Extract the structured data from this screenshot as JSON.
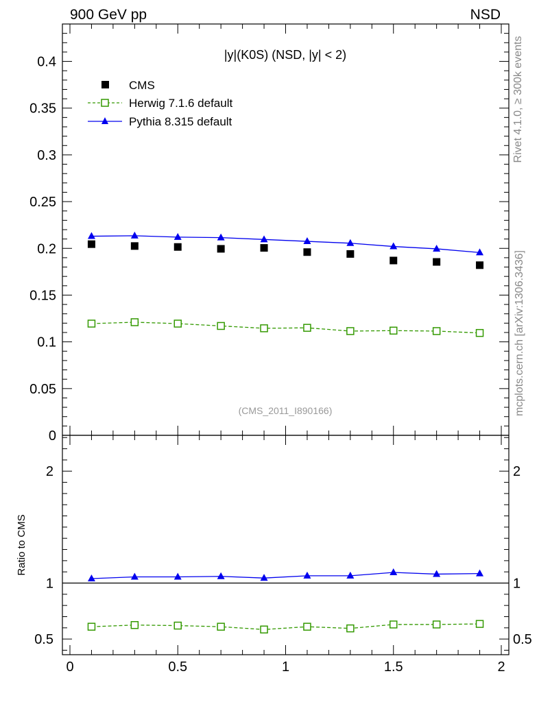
{
  "header": {
    "left": "900 GeV pp",
    "right": "NSD"
  },
  "side_labels": {
    "rivet": "Rivet 4.1.0, ≥ 300k events",
    "mcplots": "mcplots.cern.ch [arXiv:1306.3436]"
  },
  "chart_data": [
    {
      "panel": "main",
      "type": "scatter",
      "title": "|y|(K0S) (NSD, |y| < 2)",
      "watermark": "(CMS_2011_I890166)",
      "xlabel": "",
      "ylabel": "",
      "xlim": [
        0,
        2
      ],
      "ylim": [
        0,
        0.44
      ],
      "yticks": [
        0,
        0.05,
        0.1,
        0.15,
        0.2,
        0.25,
        0.3,
        0.35,
        0.4
      ],
      "ytick_labels": [
        "0",
        "0.05",
        "0.1",
        "0.15",
        "0.2",
        "0.25",
        "0.3",
        "0.35",
        "0.4"
      ],
      "legend_position": "top-left",
      "x": [
        0.1,
        0.3,
        0.5,
        0.7,
        0.9,
        1.1,
        1.3,
        1.5,
        1.7,
        1.9
      ],
      "series": [
        {
          "name": "CMS",
          "style": "marker",
          "color": "#000000",
          "values": [
            0.2045,
            0.2025,
            0.2015,
            0.1995,
            0.2005,
            0.196,
            0.194,
            0.187,
            0.1855,
            0.182
          ]
        },
        {
          "name": "Herwig 7.1.6 default",
          "style": "dashed-open-square",
          "color": "#339900",
          "values": [
            0.1195,
            0.121,
            0.1195,
            0.117,
            0.1145,
            0.115,
            0.1115,
            0.112,
            0.1115,
            0.1095
          ]
        },
        {
          "name": "Pythia 8.315 default",
          "style": "solid-triangle",
          "color": "#0000ee",
          "values": [
            0.213,
            0.2135,
            0.212,
            0.2115,
            0.2095,
            0.2075,
            0.2055,
            0.202,
            0.1995,
            0.1955
          ]
        }
      ]
    },
    {
      "panel": "ratio",
      "type": "line",
      "ylabel": "Ratio to CMS",
      "xlim": [
        0,
        2
      ],
      "ylim": [
        0.36,
        2.32
      ],
      "yticks": [
        0.5,
        1,
        2
      ],
      "ytick_labels": [
        "0.5",
        "1",
        "2"
      ],
      "xticks": [
        0,
        0.5,
        1,
        1.5,
        2
      ],
      "xtick_labels": [
        "0",
        "0.5",
        "1",
        "1.5",
        "2"
      ],
      "reference": 1,
      "x": [
        0.1,
        0.3,
        0.5,
        0.7,
        0.9,
        1.1,
        1.3,
        1.5,
        1.7,
        1.9
      ],
      "series": [
        {
          "name": "Herwig 7.1.6 default",
          "color": "#339900",
          "values": [
            0.61,
            0.625,
            0.62,
            0.61,
            0.585,
            0.61,
            0.595,
            0.63,
            0.63,
            0.635
          ]
        },
        {
          "name": "Pythia 8.315 default",
          "color": "#0000ee",
          "values": [
            1.04,
            1.055,
            1.055,
            1.06,
            1.045,
            1.065,
            1.065,
            1.095,
            1.08,
            1.085
          ]
        }
      ]
    }
  ]
}
